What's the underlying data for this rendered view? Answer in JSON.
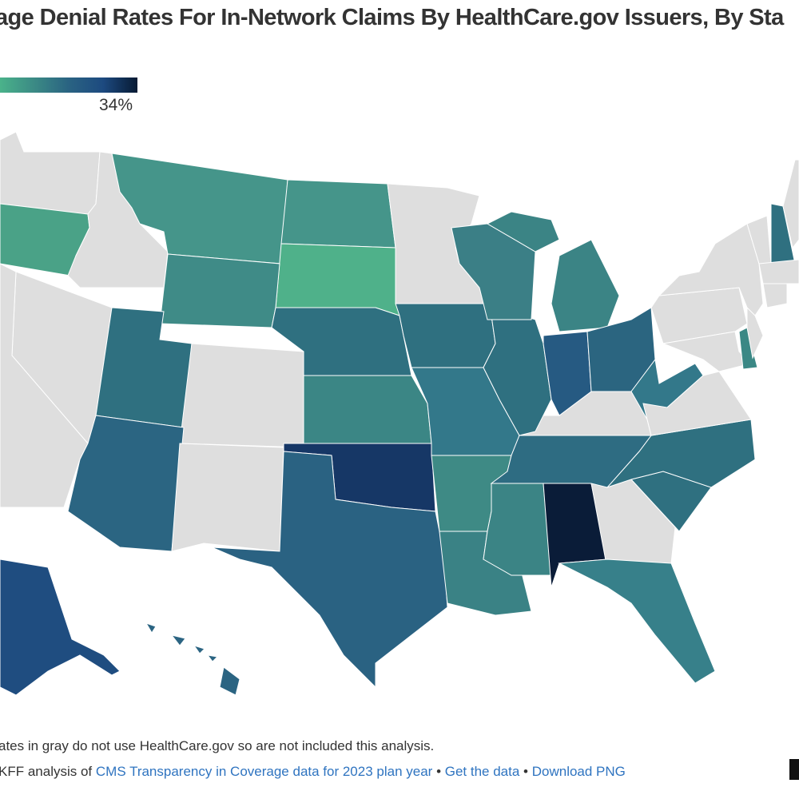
{
  "title": "age Denial Rates For In-Network Claims By HealthCare.gov Issuers, By Sta",
  "legend": {
    "max_label": "34%",
    "gradient": [
      "#4ab28a",
      "#3b8a85",
      "#2a6382",
      "#1d4a80",
      "#071a33"
    ]
  },
  "no_data_color": "#dedede",
  "states": {
    "OR": "#4aa287",
    "MT": "#45958a",
    "ND": "#45958a",
    "SD": "#4fb18a",
    "WY": "#3f8b87",
    "UT": "#2f7080",
    "AZ": "#2b6582",
    "NE": "#2f7080",
    "KS": "#3b8685",
    "OK": "#163766",
    "TX": "#2a6282",
    "IA": "#2f7080",
    "MO": "#33788a",
    "AR": "#3e8a85",
    "LA": "#3a8285",
    "MS": "#3b8485",
    "AL": "#0a1c38",
    "IL": "#2f7080",
    "IN": "#265a82",
    "WI": "#3b7f86",
    "MI": "#3b8485",
    "OH": "#2b6580",
    "WV": "#33788a",
    "TN": "#2e6c82",
    "NC": "#2f7080",
    "SC": "#2f7080",
    "FL": "#37808a",
    "NH": "#2f7080",
    "DE": "#3b8885",
    "AK": "#1f4d80",
    "HI": "#2b6482"
  },
  "footer": {
    "note": "ates in gray do not use HealthCare.gov so are not included this analysis.",
    "source_prefix": "KFF analysis of ",
    "source_link": "CMS Transparency in Coverage data for 2023 plan year",
    "sep": " • ",
    "get_data": "Get the data",
    "download": "Download PNG"
  }
}
